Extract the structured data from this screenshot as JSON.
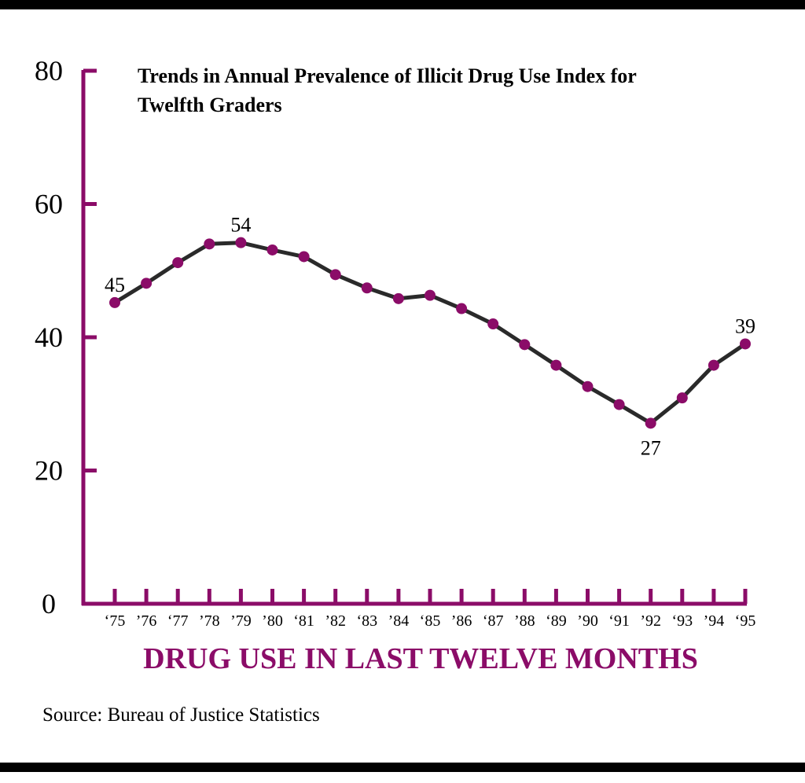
{
  "colors": {
    "accent": "#8b0c68",
    "line": "#2a2a2a",
    "text": "#000000"
  },
  "chart_data": {
    "type": "line",
    "title": "Trends in Annual Prevalence of Illicit Drug Use Index for Twelfth Graders",
    "title_lines": [
      "Trends in Annual Prevalence of Illicit Drug Use Index for",
      "Twelfth Graders"
    ],
    "xlabel": "DRUG USE IN LAST TWELVE MONTHS",
    "ylabel": "",
    "categories": [
      "‘75",
      "’76",
      "‘77",
      "’78",
      "’79",
      "’80",
      "‘81",
      "’82",
      "‘83",
      "’84",
      "‘85",
      "’86",
      "‘87",
      "’88",
      "‘89",
      "’90",
      "‘91",
      "’92",
      "‘93",
      "’94",
      "‘95"
    ],
    "values": [
      45.2,
      48.1,
      51.2,
      54.0,
      54.2,
      53.1,
      52.1,
      49.4,
      47.4,
      45.8,
      46.3,
      44.3,
      42.0,
      38.9,
      35.8,
      32.6,
      29.9,
      27.1,
      30.9,
      35.8,
      39.0
    ],
    "y_ticks": [
      0,
      20,
      40,
      60,
      80
    ],
    "ylim": [
      0,
      80
    ],
    "grid": false,
    "annotations": [
      {
        "index": 0,
        "label": "45",
        "position": "above"
      },
      {
        "index": 4,
        "label": "54",
        "position": "above"
      },
      {
        "index": 17,
        "label": "27",
        "position": "below"
      },
      {
        "index": 20,
        "label": "39",
        "position": "above"
      }
    ]
  },
  "source": "Source: Bureau of Justice Statistics"
}
